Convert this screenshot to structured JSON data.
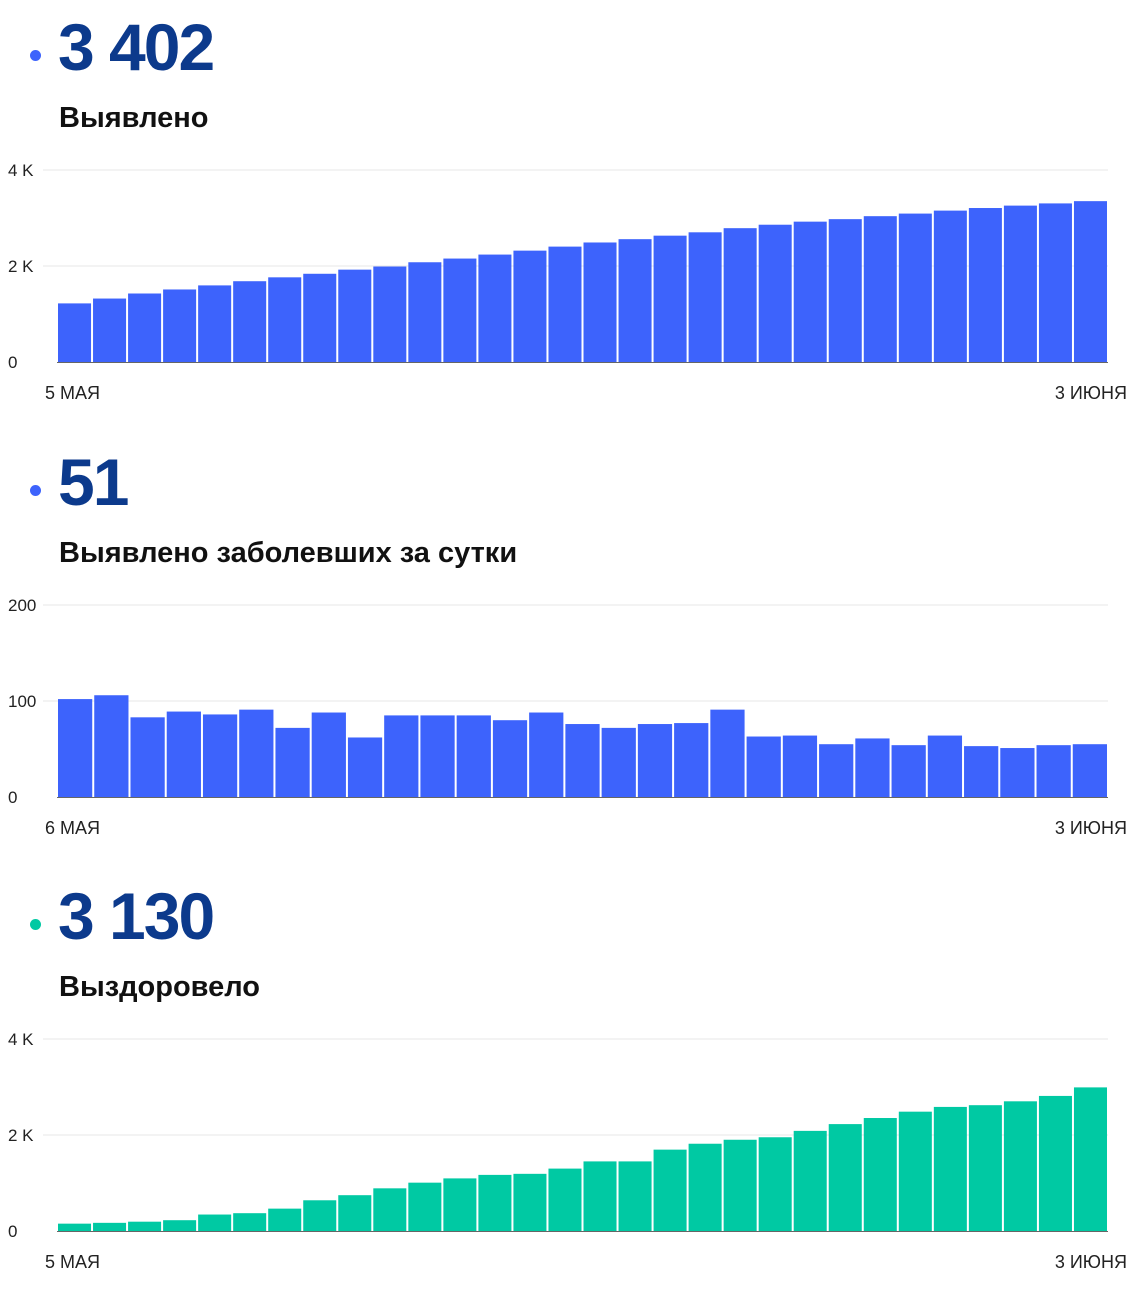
{
  "colors": {
    "blue": "#3d63fc",
    "green": "#00c9a3",
    "number": "#0c3a8c"
  },
  "charts": [
    {
      "big_number": "3 402",
      "subtitle": "Выявлено",
      "dot_color": "#3d63fc",
      "chart_data": {
        "type": "bar",
        "title": "Выявлено",
        "color": "#3d63fc",
        "ylim": [
          0,
          4000
        ],
        "y_ticks": [
          0,
          2000,
          4000
        ],
        "y_tick_labels": [
          "0",
          "2 K",
          "4 K"
        ],
        "x_start_label": "5 МАЯ",
        "x_end_label": "3 ИЮНЯ",
        "grid": true,
        "values": [
          1221,
          1322,
          1427,
          1511,
          1596,
          1683,
          1764,
          1838,
          1924,
          1989,
          2078,
          2155,
          2238,
          2320,
          2404,
          2490,
          2559,
          2632,
          2702,
          2788,
          2860,
          2924,
          2976,
          3038,
          3092,
          3154,
          3208,
          3258,
          3304,
          3351
        ]
      }
    },
    {
      "big_number": "51",
      "subtitle": "Выявлено заболевших за сутки",
      "dot_color": "#3d63fc",
      "chart_data": {
        "type": "bar",
        "title": "Выявлено заболевших за сутки",
        "color": "#3d63fc",
        "ylim": [
          0,
          200
        ],
        "y_ticks": [
          0,
          100,
          200
        ],
        "y_tick_labels": [
          "0",
          "100",
          "200"
        ],
        "x_start_label": "6 МАЯ",
        "x_end_label": "3 ИЮНЯ",
        "grid": true,
        "values": [
          102,
          106,
          83,
          89,
          86,
          91,
          72,
          88,
          62,
          85,
          85,
          85,
          80,
          88,
          76,
          72,
          76,
          77,
          91,
          63,
          64,
          55,
          61,
          54,
          64,
          53,
          51,
          54,
          55
        ]
      }
    },
    {
      "big_number": "3 130",
      "subtitle": "Выздоровело",
      "dot_color": "#00c9a3",
      "chart_data": {
        "type": "bar",
        "title": "Выздоровело",
        "color": "#00c9a3",
        "ylim": [
          0,
          4000
        ],
        "y_ticks": [
          0,
          2000,
          4000
        ],
        "y_tick_labels": [
          "0",
          "2 K",
          "4 K"
        ],
        "x_start_label": "5 МАЯ",
        "x_end_label": "3 ИЮНЯ",
        "grid": true,
        "values": [
          153,
          170,
          194,
          225,
          343,
          371,
          466,
          640,
          746,
          889,
          1007,
          1096,
          1169,
          1191,
          1300,
          1450,
          1450,
          1695,
          1818,
          1901,
          1953,
          2086,
          2227,
          2354,
          2486,
          2585,
          2621,
          2702,
          2814,
          2992
        ]
      }
    }
  ]
}
